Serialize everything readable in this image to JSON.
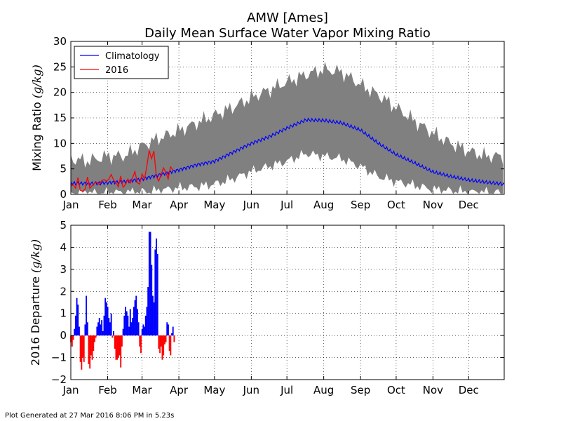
{
  "chart_data": [
    {
      "type": "line",
      "title": "AMW [Ames]",
      "subtitle": "Daily Mean Surface Water Vapor Mixing Ratio",
      "ylabel": "Mixing Ratio",
      "ylabel_unit": "(g/kg)",
      "ylim": [
        0,
        30
      ],
      "yticks": [
        "0",
        "5",
        "10",
        "15",
        "20",
        "25",
        "30"
      ],
      "xlim": [
        1,
        366
      ],
      "xticks": [
        "Jan",
        "Feb",
        "Mar",
        "Apr",
        "May",
        "Jun",
        "Jul",
        "Aug",
        "Sep",
        "Oct",
        "Nov",
        "Dec"
      ],
      "xtick_doy": [
        1,
        32,
        61,
        92,
        122,
        153,
        183,
        214,
        245,
        275,
        306,
        336
      ],
      "grid": true,
      "legend": "top-left",
      "legend_entries": [
        "Climatology",
        "2016"
      ],
      "band_color": "#808080",
      "climatology_color": "#0000ff",
      "year_color": "#ff0000",
      "series": [
        {
          "name": "Climatology",
          "x": [
            1,
            15,
            32,
            46,
            61,
            75,
            92,
            107,
            122,
            137,
            153,
            168,
            183,
            199,
            214,
            229,
            245,
            260,
            275,
            290,
            306,
            321,
            336,
            350,
            366
          ],
          "values": [
            2.2,
            2.1,
            2.3,
            2.5,
            3.0,
            3.8,
            4.8,
            5.8,
            6.5,
            8.2,
            10.0,
            11.3,
            13.0,
            14.6,
            14.5,
            14.0,
            12.6,
            10.0,
            7.8,
            6.2,
            4.4,
            3.5,
            2.8,
            2.4,
            2.0
          ]
        },
        {
          "name": "Climatology max",
          "x": [
            1,
            15,
            32,
            46,
            61,
            75,
            92,
            107,
            122,
            137,
            153,
            168,
            183,
            199,
            214,
            229,
            245,
            260,
            275,
            290,
            306,
            321,
            336,
            350,
            366
          ],
          "values": [
            7.0,
            6.5,
            7.5,
            7.5,
            9.5,
            11.0,
            12.5,
            14.0,
            15.5,
            17.0,
            19.0,
            20.5,
            22.0,
            23.5,
            24.5,
            24.0,
            21.5,
            19.5,
            17.0,
            14.5,
            12.0,
            10.0,
            8.5,
            7.5,
            7.5
          ]
        },
        {
          "name": "Climatology min",
          "x": [
            1,
            15,
            32,
            46,
            61,
            75,
            92,
            107,
            122,
            137,
            153,
            168,
            183,
            199,
            214,
            229,
            245,
            260,
            275,
            290,
            306,
            321,
            336,
            350,
            366
          ],
          "values": [
            0.3,
            0.3,
            0.3,
            0.4,
            0.5,
            0.8,
            1.3,
            1.5,
            2.0,
            3.0,
            4.5,
            5.5,
            6.5,
            8.0,
            7.5,
            7.0,
            5.5,
            3.5,
            2.5,
            1.8,
            1.0,
            0.7,
            0.5,
            0.4,
            0.3
          ]
        },
        {
          "name": "2016",
          "x": [
            1,
            3,
            5,
            7,
            9,
            11,
            13,
            15,
            17,
            19,
            21,
            23,
            25,
            27,
            29,
            31,
            33,
            35,
            37,
            39,
            41,
            43,
            45,
            47,
            49,
            51,
            53,
            55,
            57,
            59,
            61,
            63,
            65,
            67,
            69,
            71,
            73,
            75,
            77,
            79,
            81,
            83,
            85,
            87
          ],
          "values": [
            1.6,
            1.9,
            1.2,
            3.3,
            0.8,
            0.6,
            1.0,
            3.4,
            1.2,
            1.7,
            2.2,
            2.4,
            1.9,
            2.7,
            2.9,
            2.6,
            3.0,
            3.9,
            2.8,
            2.3,
            1.5,
            3.6,
            1.4,
            1.9,
            3.0,
            2.2,
            3.2,
            4.5,
            2.3,
            2.0,
            4.0,
            3.0,
            5.5,
            8.6,
            7.0,
            8.5,
            3.5,
            2.6,
            3.8,
            5.2,
            4.3,
            3.0,
            5.4,
            4.8
          ]
        }
      ]
    },
    {
      "type": "bar",
      "ylabel": "2016 Departure",
      "ylabel_unit": "(g/kg)",
      "ylim": [
        -2,
        5
      ],
      "yticks": [
        "−2",
        "−1",
        "0",
        "1",
        "2",
        "3",
        "4",
        "5"
      ],
      "xlim": [
        1,
        366
      ],
      "xticks": [
        "Jan",
        "Feb",
        "Mar",
        "Apr",
        "May",
        "Jun",
        "Jul",
        "Aug",
        "Sep",
        "Oct",
        "Nov",
        "Dec"
      ],
      "xtick_doy": [
        1,
        32,
        61,
        92,
        122,
        153,
        183,
        214,
        245,
        275,
        306,
        336
      ],
      "grid": true,
      "positive_color": "#0000ff",
      "negative_color": "#ff0000",
      "x": [
        1,
        2,
        3,
        4,
        5,
        6,
        7,
        8,
        9,
        10,
        11,
        12,
        13,
        14,
        15,
        16,
        17,
        18,
        19,
        20,
        21,
        22,
        23,
        24,
        25,
        26,
        27,
        28,
        29,
        30,
        31,
        32,
        33,
        34,
        35,
        36,
        37,
        38,
        39,
        40,
        41,
        42,
        43,
        44,
        45,
        46,
        47,
        48,
        49,
        50,
        51,
        52,
        53,
        54,
        55,
        56,
        57,
        58,
        59,
        60,
        61,
        62,
        63,
        64,
        65,
        66,
        67,
        68,
        69,
        70,
        71,
        72,
        73,
        74,
        75,
        76,
        77,
        78,
        79,
        80,
        81,
        82,
        83,
        84,
        85,
        86,
        87,
        88
      ],
      "values": [
        -0.3,
        -0.5,
        -0.2,
        0.3,
        0.9,
        1.7,
        1.4,
        0.4,
        -1.2,
        -1.55,
        -1.0,
        -1.2,
        0.5,
        1.8,
        0.6,
        -1.3,
        -1.5,
        -0.9,
        -1.1,
        -0.7,
        -0.3,
        -0.1,
        0.4,
        0.6,
        0.8,
        0.5,
        0.7,
        0.2,
        0.9,
        1.7,
        1.5,
        1.3,
        0.8,
        0.6,
        1.0,
        -0.1,
        0.2,
        -0.6,
        -1.1,
        -1.1,
        -1.0,
        -0.9,
        -1.45,
        -0.5,
        0.3,
        0.9,
        1.3,
        1.1,
        0.9,
        0.4,
        1.2,
        0.6,
        0.8,
        1.3,
        1.6,
        1.8,
        1.2,
        0.6,
        -0.5,
        -0.8,
        0.3,
        0.5,
        0.4,
        0.9,
        1.3,
        2.2,
        4.7,
        4.7,
        3.2,
        1.8,
        1.5,
        3.9,
        4.4,
        3.7,
        -0.6,
        -0.8,
        -0.5,
        -1.1,
        -0.9,
        -0.4,
        -0.3,
        0.6,
        0.5,
        -0.7,
        -0.9,
        0.1,
        0.4,
        -0.3
      ]
    }
  ],
  "footer": "Plot Generated at 27 Mar 2016 8:06 PM in 5.23s"
}
